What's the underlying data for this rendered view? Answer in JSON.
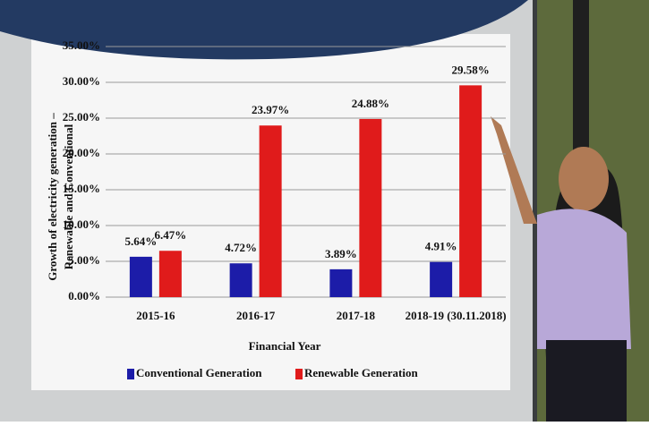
{
  "chart_data": {
    "type": "bar",
    "ylabel": [
      "Growth of electricity generation –",
      "Renewable and Conventional"
    ],
    "xlabel": "Financial Year",
    "categories": [
      "2015-16",
      "2016-17",
      "2017-18",
      "2018-19 (30.11.2018)"
    ],
    "series": [
      {
        "name": "Conventional Generation",
        "color": "#1c1ca8",
        "values": [
          5.64,
          4.72,
          3.89,
          4.91
        ],
        "value_labels": [
          "5.64%",
          "4.72%",
          "3.89%",
          "4.91%"
        ]
      },
      {
        "name": "Renewable Generation",
        "color": "#e01b1b",
        "values": [
          6.47,
          23.97,
          24.88,
          29.58
        ],
        "value_labels": [
          "6.47%",
          "23.97%",
          "24.88%",
          "29.58%"
        ]
      }
    ],
    "ylim": [
      0,
      35
    ],
    "yticks": [
      {
        "value": 0,
        "label": "0.00%"
      },
      {
        "value": 5,
        "label": "5.00%"
      },
      {
        "value": 10,
        "label": "10.00%"
      },
      {
        "value": 15,
        "label": "15.00%"
      },
      {
        "value": 20,
        "label": "20.00%"
      },
      {
        "value": 25,
        "label": "25.00%"
      },
      {
        "value": 30,
        "label": "30.00%"
      },
      {
        "value": 35,
        "label": "35.00%"
      }
    ],
    "grid": true,
    "legend": "bottom"
  }
}
